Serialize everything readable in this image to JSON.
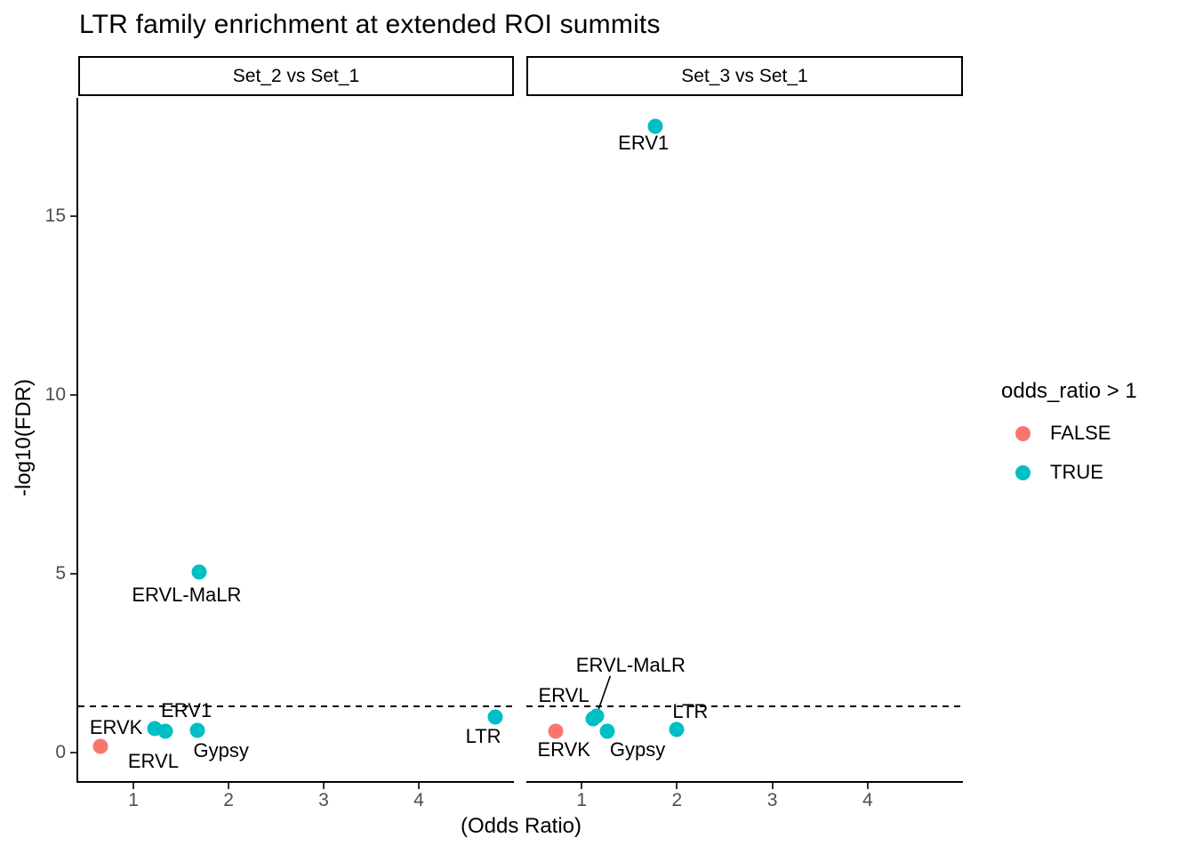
{
  "title": "LTR family enrichment at extended ROI summits",
  "axes": {
    "x_label": "(Odds Ratio)",
    "y_label": "-log10(FDR)"
  },
  "legend": {
    "title": "odds_ratio > 1",
    "items": [
      {
        "label": "FALSE",
        "color": "#F8766D"
      },
      {
        "label": "TRUE",
        "color": "#00BFC4"
      }
    ]
  },
  "chart_data": {
    "type": "scatter",
    "title": "LTR family enrichment at extended ROI summits",
    "xlabel": "(Odds Ratio)",
    "ylabel": "-log10(FDR)",
    "xlim": [
      0.42,
      5.0
    ],
    "ylim": [
      -0.8,
      18.3
    ],
    "x_ticks": [
      1,
      2,
      3,
      4
    ],
    "y_ticks": [
      0,
      5,
      10,
      15
    ],
    "grid": false,
    "legend_position": "right",
    "threshold_line": {
      "y": 1.3,
      "style": "dashed",
      "color": "#000000"
    },
    "color_by": "odds_ratio > 1",
    "facets": [
      {
        "label": "Set_2 vs Set_1",
        "points": [
          {
            "family": "ERVK",
            "odds_ratio": 0.65,
            "neg_log10_fdr": 0.17,
            "odds_ratio_gt_1": false,
            "label_offset": [
              18,
              -21
            ]
          },
          {
            "family": "ERV1",
            "odds_ratio": 1.22,
            "neg_log10_fdr": 0.67,
            "odds_ratio_gt_1": true,
            "label_offset": [
              36,
              -20
            ]
          },
          {
            "family": "ERVL",
            "odds_ratio": 1.34,
            "neg_log10_fdr": 0.6,
            "odds_ratio_gt_1": true,
            "label_offset": [
              -14,
              34
            ]
          },
          {
            "family": "ERVL-MaLR",
            "odds_ratio": 1.69,
            "neg_log10_fdr": 5.05,
            "odds_ratio_gt_1": true,
            "label_offset": [
              -14,
              26
            ]
          },
          {
            "family": "Gypsy",
            "odds_ratio": 1.67,
            "neg_log10_fdr": 0.62,
            "odds_ratio_gt_1": true,
            "label_offset": [
              27,
              23
            ]
          },
          {
            "family": "LTR",
            "odds_ratio": 4.8,
            "neg_log10_fdr": 1.0,
            "odds_ratio_gt_1": true,
            "label_offset": [
              -13,
              22
            ]
          }
        ]
      },
      {
        "label": "Set_3 vs Set_1",
        "points": [
          {
            "family": "ERV1",
            "odds_ratio": 1.77,
            "neg_log10_fdr": 17.5,
            "odds_ratio_gt_1": true,
            "label_offset": [
              -13,
              19
            ]
          },
          {
            "family": "ERVK",
            "odds_ratio": 0.73,
            "neg_log10_fdr": 0.6,
            "odds_ratio_gt_1": false,
            "label_offset": [
              9,
              21
            ]
          },
          {
            "family": "ERVL",
            "odds_ratio": 1.12,
            "neg_log10_fdr": 0.95,
            "odds_ratio_gt_1": true,
            "label_offset": [
              -33,
              -26
            ]
          },
          {
            "family": "ERVL-MaLR",
            "odds_ratio": 1.16,
            "neg_log10_fdr": 1.02,
            "odds_ratio_gt_1": true,
            "label_offset": [
              38,
              -57
            ],
            "leader": [
              [
                1,
                -5
              ],
              [
                15,
                -45
              ]
            ]
          },
          {
            "family": "Gypsy",
            "odds_ratio": 1.27,
            "neg_log10_fdr": 0.6,
            "odds_ratio_gt_1": true,
            "label_offset": [
              34,
              21
            ]
          },
          {
            "family": "LTR",
            "odds_ratio": 2.0,
            "neg_log10_fdr": 0.65,
            "odds_ratio_gt_1": true,
            "label_offset": [
              15,
              -20
            ]
          }
        ]
      }
    ]
  }
}
